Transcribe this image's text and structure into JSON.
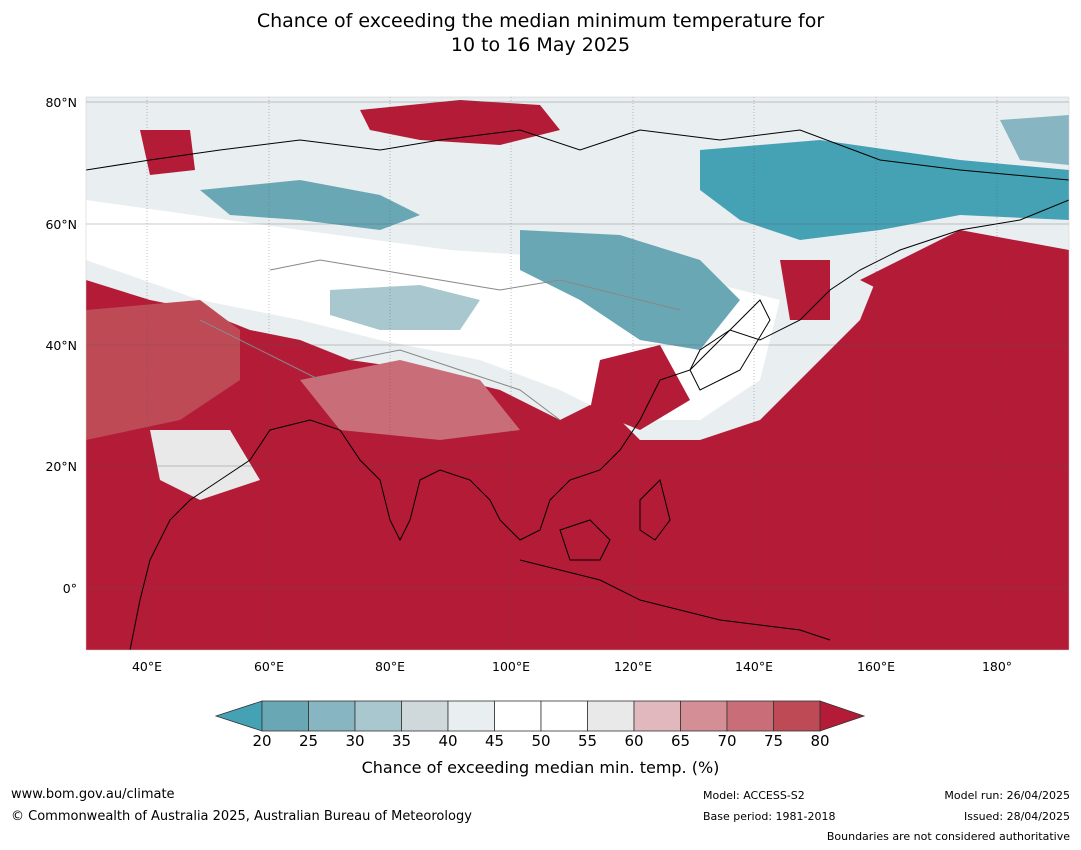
{
  "title": {
    "line1": "Chance of exceeding the median minimum temperature for",
    "line2": "10 to 16 May 2025"
  },
  "map": {
    "region": "Asia",
    "lon_range": [
      30,
      192
    ],
    "lat_range": [
      -10,
      80
    ],
    "lat_labels": [
      "80°N",
      "60°N",
      "40°N",
      "20°N",
      "0°"
    ],
    "lon_labels": [
      "40°E",
      "60°E",
      "80°E",
      "100°E",
      "120°E",
      "140°E",
      "160°E",
      "180°"
    ],
    "ocean_color": "#b31b37",
    "land_outline_color": "#000000",
    "border_color": "#888888"
  },
  "colorbar": {
    "ticks": [
      "20",
      "25",
      "30",
      "35",
      "40",
      "45",
      "50",
      "55",
      "60",
      "65",
      "70",
      "75",
      "80"
    ],
    "colors": [
      "#6aa7b5",
      "#88b5c2",
      "#a9c7ce",
      "#cfd9dc",
      "#e9eef0",
      "#ffffff",
      "#ffffff",
      "#e9e9e9",
      "#e0b8bd",
      "#d48e96",
      "#c96d78",
      "#be4a56"
    ],
    "under_color": "#45a1b4",
    "over_color": "#b31b37",
    "label": "Chance of exceeding median min. temp. (%)"
  },
  "footer": {
    "url": "www.bom.gov.au/climate",
    "copyright": "© Commonwealth of Australia 2025, Australian Bureau of Meteorology",
    "model": "Model: ACCESS-S2",
    "base_period": "Base period: 1981-2018",
    "model_run": "Model run: 26/04/2025",
    "issued": "Issued: 28/04/2025",
    "disclaimer": "Boundaries are not considered authoritative"
  }
}
